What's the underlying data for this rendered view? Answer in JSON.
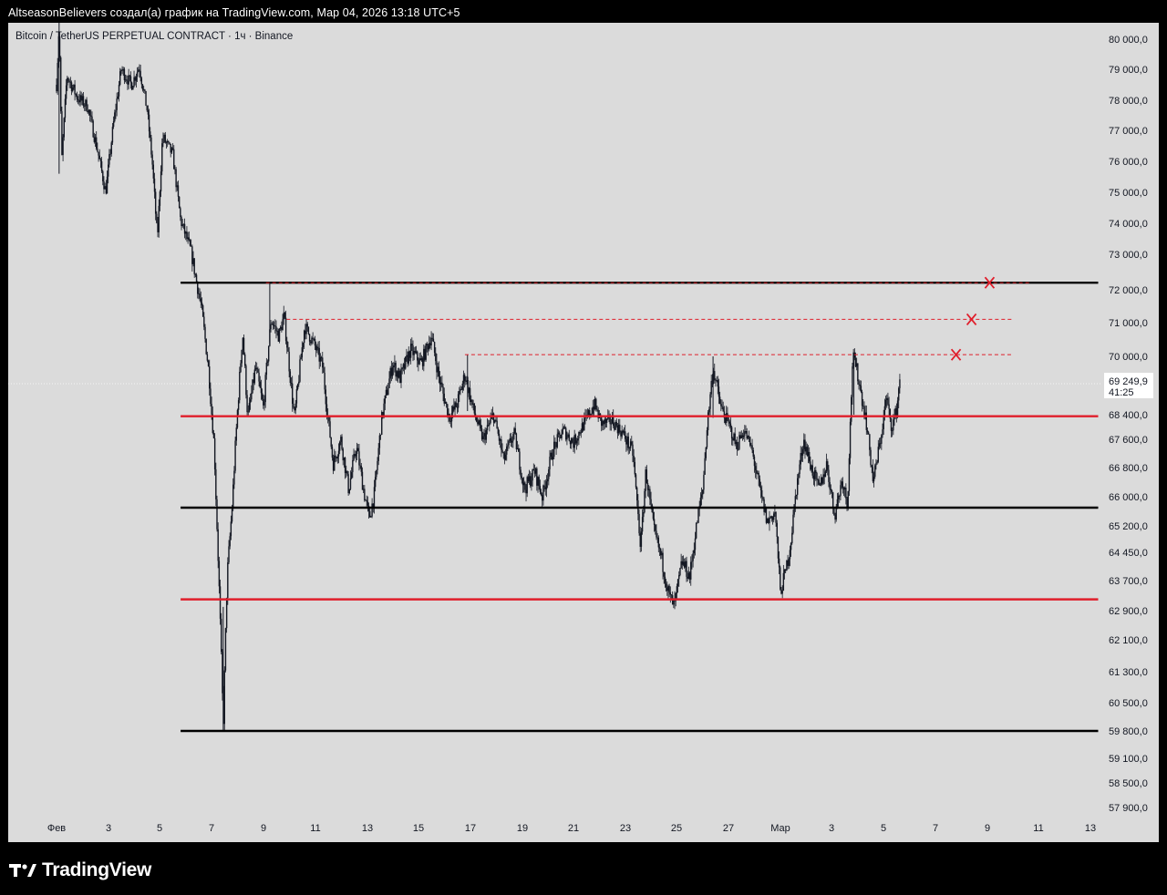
{
  "header": {
    "caption": "AltseasonBelievers создал(а) график на TradingView.com, Мар 04, 2026 13:18 UTC+5"
  },
  "chart": {
    "symbol_title": "Bitcoin / TetherUS PERPETUAL CONTRACT · 1ч · Binance",
    "last_price_label": "69 249,9",
    "countdown_label": "41:25"
  },
  "brand": {
    "name": "TradingView",
    "icon": "tradingview-logo-icon"
  },
  "colors": {
    "background": "#dbdbdb",
    "candles": "#131722",
    "resistance_line": "#e01e2b",
    "support_line": "#000000"
  },
  "chart_data": {
    "type": "candlestick",
    "y_ticks": [
      "80 000,0",
      "79 000,0",
      "78 000,0",
      "77 000,0",
      "76 000,0",
      "75 000,0",
      "74 000,0",
      "73 000,0",
      "72 000,0",
      "71 000,0",
      "70 000,0",
      "68 400,0",
      "67 600,0",
      "66 800,0",
      "66 000,0",
      "65 200,0",
      "64 450,0",
      "63 700,0",
      "62 900,0",
      "62 100,0",
      "61 300,0",
      "60 500,0",
      "59 800,0",
      "59 100,0",
      "58 500,0",
      "57 900,0"
    ],
    "y_tick_values": [
      80000,
      79000,
      78000,
      77000,
      76000,
      75000,
      74000,
      73000,
      72000,
      71000,
      70000,
      68400,
      67600,
      66800,
      66000,
      65200,
      64450,
      63700,
      62900,
      62100,
      61300,
      60500,
      59800,
      59100,
      58500,
      57900
    ],
    "x_ticks": [
      "Фев",
      "3",
      "5",
      "7",
      "9",
      "11",
      "13",
      "15",
      "17",
      "19",
      "21",
      "23",
      "25",
      "27",
      "Мар",
      "3",
      "5",
      "7",
      "9",
      "11",
      "13"
    ],
    "x_tick_days": [
      1,
      3,
      5,
      7,
      9,
      11,
      13,
      15,
      17,
      19,
      21,
      23,
      25,
      27,
      29,
      31,
      33,
      35,
      37,
      39,
      41
    ],
    "last_price": 69249.9,
    "horizontal_levels": [
      {
        "price": 72200,
        "color": "black",
        "style": "solid",
        "from_day": 5.8,
        "to_day": 41.3
      },
      {
        "price": 68350,
        "color": "red",
        "style": "solid",
        "from_day": 5.8,
        "to_day": 41.3
      },
      {
        "price": 65700,
        "color": "black",
        "style": "solid",
        "from_day": 5.8,
        "to_day": 41.3
      },
      {
        "price": 63200,
        "color": "red",
        "style": "solid",
        "from_day": 5.8,
        "to_day": 41.3
      },
      {
        "price": 59800,
        "color": "black",
        "style": "solid",
        "from_day": 5.8,
        "to_day": 41.3
      },
      {
        "price": 72200,
        "color": "red",
        "style": "dashed",
        "from_day": 9.1,
        "to_day": 38.7
      },
      {
        "price": 71100,
        "color": "red",
        "style": "dashed",
        "from_day": 9.9,
        "to_day": 38.0
      },
      {
        "price": 70050,
        "color": "red",
        "style": "dashed",
        "from_day": 16.8,
        "to_day": 38.0
      }
    ],
    "x_marks": [
      {
        "day": 37.1,
        "price": 72200
      },
      {
        "day": 36.4,
        "price": 71100
      },
      {
        "day": 35.8,
        "price": 70050
      }
    ],
    "price_path": [
      [
        1.0,
        78500
      ],
      [
        1.1,
        80500
      ],
      [
        1.2,
        76000
      ],
      [
        1.4,
        78800
      ],
      [
        1.8,
        78100
      ],
      [
        2.2,
        77800
      ],
      [
        2.6,
        76300
      ],
      [
        2.9,
        75000
      ],
      [
        3.2,
        77200
      ],
      [
        3.5,
        79000
      ],
      [
        3.9,
        78500
      ],
      [
        4.2,
        79100
      ],
      [
        4.5,
        77700
      ],
      [
        4.7,
        76000
      ],
      [
        4.9,
        73500
      ],
      [
        5.1,
        76800
      ],
      [
        5.5,
        76200
      ],
      [
        5.8,
        74100
      ],
      [
        6.2,
        73100
      ],
      [
        6.6,
        71500
      ],
      [
        6.9,
        69500
      ],
      [
        7.1,
        67400
      ],
      [
        7.3,
        63300
      ],
      [
        7.45,
        59900
      ],
      [
        7.6,
        63800
      ],
      [
        7.8,
        65800
      ],
      [
        8.0,
        68500
      ],
      [
        8.2,
        70700
      ],
      [
        8.4,
        68300
      ],
      [
        8.7,
        69700
      ],
      [
        9.0,
        68600
      ],
      [
        9.3,
        71100
      ],
      [
        9.6,
        70600
      ],
      [
        9.8,
        71200
      ],
      [
        10.2,
        68300
      ],
      [
        10.6,
        70900
      ],
      [
        11.0,
        70300
      ],
      [
        11.3,
        69700
      ],
      [
        11.7,
        66900
      ],
      [
        12.0,
        67600
      ],
      [
        12.3,
        66200
      ],
      [
        12.6,
        67400
      ],
      [
        12.9,
        66100
      ],
      [
        13.1,
        65400
      ],
      [
        13.3,
        66100
      ],
      [
        13.6,
        68400
      ],
      [
        14.0,
        69800
      ],
      [
        14.3,
        69400
      ],
      [
        14.7,
        70200
      ],
      [
        15.1,
        69800
      ],
      [
        15.5,
        70600
      ],
      [
        15.8,
        69400
      ],
      [
        16.2,
        68300
      ],
      [
        16.5,
        68700
      ],
      [
        16.8,
        69500
      ],
      [
        17.1,
        68600
      ],
      [
        17.5,
        67600
      ],
      [
        17.9,
        68400
      ],
      [
        18.3,
        67000
      ],
      [
        18.7,
        67800
      ],
      [
        19.1,
        66200
      ],
      [
        19.5,
        66700
      ],
      [
        19.8,
        66000
      ],
      [
        20.2,
        67300
      ],
      [
        20.6,
        67900
      ],
      [
        21.0,
        67500
      ],
      [
        21.4,
        68100
      ],
      [
        21.8,
        68700
      ],
      [
        22.1,
        68100
      ],
      [
        22.5,
        68200
      ],
      [
        22.9,
        67800
      ],
      [
        23.3,
        67200
      ],
      [
        23.6,
        64600
      ],
      [
        23.8,
        66700
      ],
      [
        24.1,
        65100
      ],
      [
        24.4,
        64300
      ],
      [
        24.7,
        63300
      ],
      [
        24.9,
        63000
      ],
      [
        25.2,
        64200
      ],
      [
        25.5,
        63800
      ],
      [
        25.8,
        65400
      ],
      [
        26.0,
        66200
      ],
      [
        26.2,
        68300
      ],
      [
        26.4,
        69700
      ],
      [
        26.7,
        68600
      ],
      [
        27.0,
        68100
      ],
      [
        27.3,
        67400
      ],
      [
        27.6,
        67900
      ],
      [
        27.9,
        67300
      ],
      [
        28.2,
        66200
      ],
      [
        28.5,
        65300
      ],
      [
        28.8,
        65600
      ],
      [
        29.0,
        63400
      ],
      [
        29.2,
        63900
      ],
      [
        29.4,
        64700
      ],
      [
        29.6,
        66100
      ],
      [
        29.9,
        67600
      ],
      [
        30.2,
        66800
      ],
      [
        30.5,
        66200
      ],
      [
        30.8,
        66900
      ],
      [
        31.1,
        65500
      ],
      [
        31.4,
        66500
      ],
      [
        31.6,
        65800
      ],
      [
        31.8,
        70000
      ],
      [
        32.0,
        69500
      ],
      [
        32.3,
        68300
      ],
      [
        32.6,
        66400
      ],
      [
        32.9,
        67700
      ],
      [
        33.1,
        68900
      ],
      [
        33.3,
        68000
      ],
      [
        33.5,
        68500
      ],
      [
        33.65,
        69600
      ]
    ]
  }
}
